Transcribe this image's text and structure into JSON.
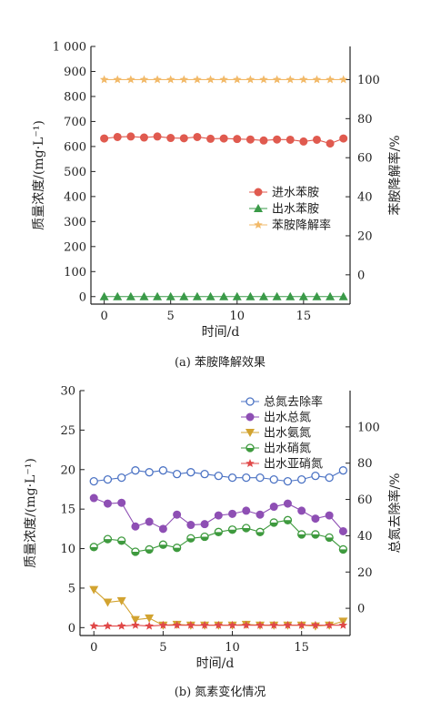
{
  "chart_data": [
    {
      "type": "line",
      "caption": "(a) 苯胺降解效果",
      "xlabel": "时间/d",
      "ylabel": "质量浓度/(mg·L⁻¹)",
      "y2label": "苯胺降解率/%",
      "xlim": [
        -1,
        18.5
      ],
      "ylim": [
        -30,
        1000
      ],
      "y2lim": [
        -15,
        117
      ],
      "xticks": [
        0,
        5,
        10,
        15
      ],
      "yticks": [
        0,
        100,
        200,
        300,
        400,
        500,
        600,
        700,
        800,
        900,
        1000
      ],
      "ytick_labels": [
        "0",
        "100",
        "200",
        "300",
        "400",
        "500",
        "600",
        "700",
        "800",
        "900",
        "1 000"
      ],
      "y2ticks": [
        0,
        20,
        40,
        60,
        80,
        100
      ],
      "x": [
        0,
        1,
        2,
        3,
        4,
        5,
        6,
        7,
        8,
        9,
        10,
        11,
        12,
        13,
        14,
        15,
        16,
        17,
        18
      ],
      "legend_position": "center-right",
      "series": [
        {
          "name": "进水苯胺",
          "axis": "left",
          "marker": "circle",
          "color": "#e05a4f",
          "values": [
            632,
            638,
            640,
            636,
            640,
            634,
            633,
            638,
            631,
            632,
            630,
            628,
            624,
            628,
            627,
            620,
            627,
            612,
            632
          ]
        },
        {
          "name": "出水苯胺",
          "axis": "left",
          "marker": "triangle-up",
          "color": "#3a9a48",
          "values": [
            0,
            0,
            0,
            0,
            0,
            0,
            0,
            0,
            0,
            0,
            0,
            0,
            0,
            0,
            0,
            0,
            0,
            0,
            0
          ]
        },
        {
          "name": "苯胺降解率",
          "axis": "right",
          "marker": "star",
          "color": "#f2b968",
          "values": [
            100,
            100,
            100,
            100,
            100,
            100,
            100,
            100,
            100,
            100,
            100,
            100,
            100,
            100,
            100,
            100,
            100,
            100,
            100
          ]
        }
      ]
    },
    {
      "type": "line",
      "caption": "(b) 氮素变化情况",
      "xlabel": "时间/d",
      "ylabel": "质量浓度/(mg·L⁻¹)",
      "y2label": "总氮去除率/%",
      "xlim": [
        -1,
        18.5
      ],
      "ylim": [
        -1,
        30
      ],
      "y2lim": [
        -15,
        120
      ],
      "xticks": [
        0,
        5,
        10,
        15
      ],
      "yticks": [
        0,
        5,
        10,
        15,
        20,
        25,
        30
      ],
      "ytick_labels": [
        "0",
        "5",
        "10",
        "15",
        "20",
        "25",
        "30"
      ],
      "y2ticks": [
        0,
        20,
        40,
        60,
        80,
        100
      ],
      "x": [
        0,
        1,
        2,
        3,
        4,
        5,
        6,
        7,
        8,
        9,
        10,
        11,
        12,
        13,
        14,
        15,
        16,
        17,
        18
      ],
      "legend_position": "top-right",
      "series": [
        {
          "name": "总氮去除率",
          "axis": "right",
          "marker": "circle-open",
          "color": "#4c73c4",
          "values": [
            70,
            71,
            72,
            76,
            75,
            76,
            74,
            75,
            74,
            73,
            72,
            72,
            72,
            71,
            70,
            71,
            73,
            72,
            76
          ]
        },
        {
          "name": "出水总氮",
          "axis": "left",
          "marker": "circle",
          "color": "#8e4fb4",
          "values": [
            16.4,
            15.7,
            15.8,
            12.8,
            13.4,
            12.5,
            14.3,
            13.0,
            13.1,
            14.2,
            14.4,
            14.8,
            14.3,
            15.3,
            15.7,
            14.8,
            13.8,
            14.2,
            12.2
          ]
        },
        {
          "name": "出水氨氮",
          "axis": "left",
          "marker": "triangle-down",
          "color": "#d2a330",
          "values": [
            4.8,
            3.2,
            3.4,
            1.0,
            1.2,
            0.3,
            0.4,
            0.3,
            0.3,
            0.3,
            0.3,
            0.4,
            0.3,
            0.3,
            0.3,
            0.3,
            0.2,
            0.3,
            0.8
          ]
        },
        {
          "name": "出水硝氮",
          "axis": "left",
          "marker": "circle-half",
          "color": "#3e9a3e",
          "values": [
            10.2,
            11.2,
            11.0,
            9.6,
            9.9,
            10.5,
            10.1,
            11.3,
            11.5,
            12.1,
            12.4,
            12.6,
            12.1,
            13.3,
            13.6,
            11.8,
            11.8,
            11.4,
            9.9
          ]
        },
        {
          "name": "出水亚硝氮",
          "axis": "left",
          "marker": "star",
          "color": "#e04848",
          "values": [
            0.2,
            0.2,
            0.2,
            0.3,
            0.2,
            0.3,
            0.3,
            0.3,
            0.3,
            0.3,
            0.3,
            0.3,
            0.3,
            0.3,
            0.3,
            0.3,
            0.3,
            0.3,
            0.3
          ]
        }
      ]
    }
  ]
}
